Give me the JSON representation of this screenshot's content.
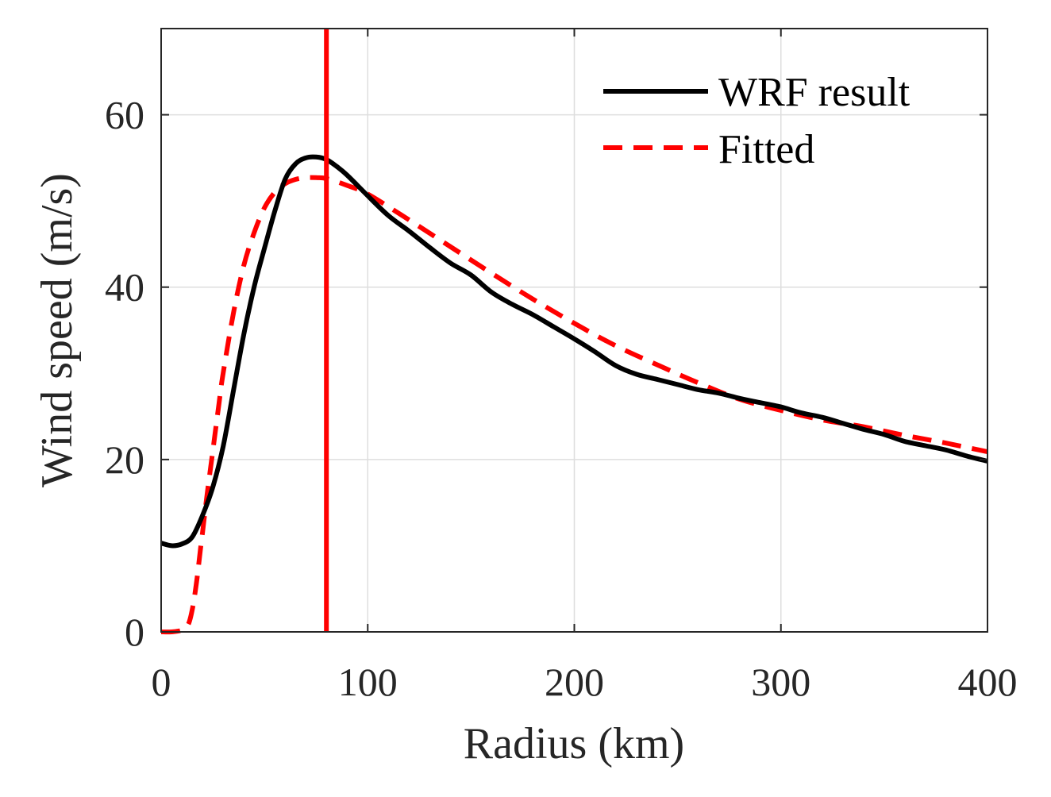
{
  "chart_data": {
    "type": "line",
    "xlabel": "Radius (km)",
    "ylabel": "Wind speed (m/s)",
    "xlim": [
      0,
      400
    ],
    "ylim": [
      0,
      70
    ],
    "xticks": [
      0,
      100,
      200,
      300,
      400
    ],
    "yticks": [
      0,
      20,
      40,
      60
    ],
    "xtick_labels": [
      "0",
      "100",
      "200",
      "300",
      "400"
    ],
    "ytick_labels": [
      "0",
      "20",
      "40",
      "60"
    ],
    "grid": true,
    "legend_position": "top-right",
    "series": [
      {
        "name": "WRF result",
        "style": "solid",
        "color": "#000000",
        "x": [
          0,
          5,
          10,
          15,
          20,
          25,
          30,
          35,
          40,
          45,
          50,
          55,
          60,
          65,
          70,
          75,
          80,
          85,
          90,
          100,
          110,
          120,
          130,
          140,
          150,
          160,
          170,
          180,
          190,
          200,
          210,
          220,
          230,
          240,
          250,
          260,
          270,
          280,
          290,
          300,
          310,
          320,
          330,
          340,
          350,
          360,
          370,
          380,
          390,
          400
        ],
        "y": [
          10.3,
          10.0,
          10.2,
          11.0,
          13.5,
          16.8,
          21.5,
          28.0,
          34.5,
          40.0,
          44.5,
          48.8,
          52.5,
          54.3,
          55.0,
          55.1,
          54.8,
          54.0,
          53.0,
          50.6,
          48.3,
          46.5,
          44.6,
          42.8,
          41.4,
          39.4,
          38.0,
          36.8,
          35.4,
          34.0,
          32.5,
          30.9,
          29.9,
          29.3,
          28.7,
          28.1,
          27.7,
          27.1,
          26.6,
          26.1,
          25.4,
          24.9,
          24.2,
          23.5,
          22.9,
          22.1,
          21.6,
          21.1,
          20.4,
          19.8
        ]
      },
      {
        "name": "Fitted",
        "style": "dashed",
        "color": "#ff0000",
        "x": [
          0,
          5,
          10,
          13,
          15,
          17,
          19,
          20,
          22,
          25,
          28,
          30,
          35,
          40,
          45,
          50,
          55,
          60,
          65,
          70,
          75,
          80,
          90,
          100,
          120,
          140,
          160,
          180,
          200,
          220,
          240,
          260,
          280,
          300,
          320,
          340,
          360,
          380,
          400
        ],
        "y": [
          0.0,
          0.0,
          0.2,
          0.8,
          2.5,
          5.5,
          9.5,
          11.5,
          15.5,
          21.0,
          26.5,
          30.0,
          37.0,
          42.5,
          46.3,
          49.2,
          51.0,
          52.0,
          52.5,
          52.7,
          52.7,
          52.6,
          51.8,
          50.8,
          47.8,
          44.7,
          41.6,
          38.6,
          35.8,
          33.2,
          31.0,
          28.9,
          27.0,
          25.7,
          24.6,
          23.8,
          22.8,
          21.9,
          20.9
        ]
      }
    ],
    "vertical_line": {
      "x": 80,
      "color": "#ff0000"
    }
  }
}
